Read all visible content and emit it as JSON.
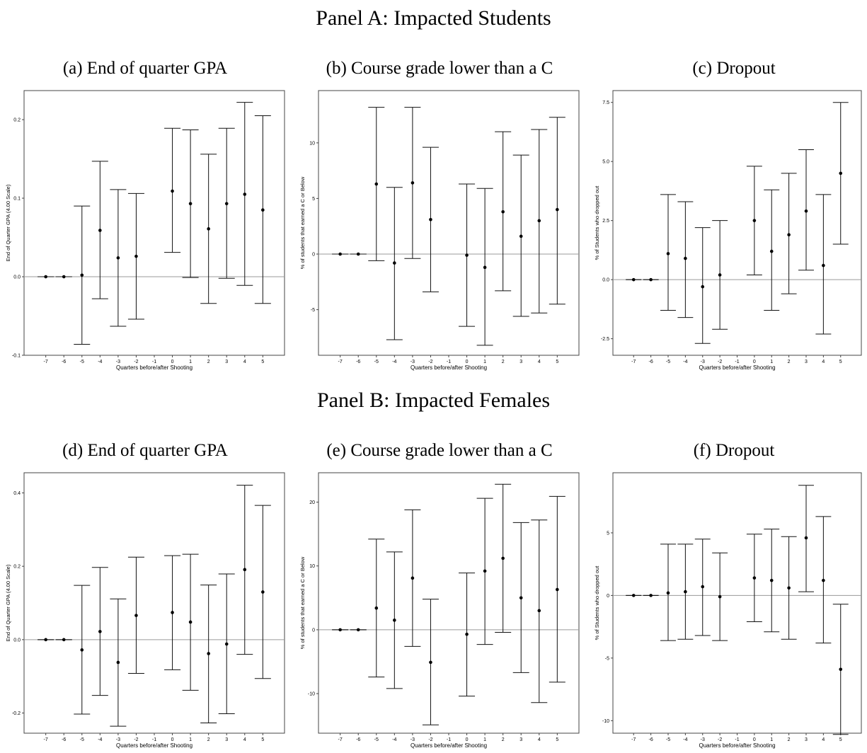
{
  "panels": [
    {
      "title": "Panel A: Impacted Students"
    },
    {
      "title": "Panel B: Impacted Females"
    }
  ],
  "chart_data": [
    {
      "id": "a",
      "type": "scatter",
      "title": "(a) End of quarter GPA",
      "xlabel": "Quarters before/after Shooting",
      "ylabel": "End of Quarter GPA (4.00 Scale)",
      "xlim": [
        -8.2,
        6.2
      ],
      "ylim": [
        -0.1,
        0.237
      ],
      "x_ticks": [
        -7,
        -6,
        -5,
        -4,
        -3,
        -2,
        -1,
        0,
        1,
        2,
        3,
        4,
        5
      ],
      "x_tick_labels": [
        "-7",
        "-6",
        "-5",
        "-4",
        "-3",
        "-2",
        "-1",
        "0",
        "1",
        "2",
        "3",
        "4",
        "5"
      ],
      "y_ticks": [
        -0.1,
        0.0,
        0.1,
        0.2
      ],
      "y_tick_labels": [
        "-0.1",
        "0.0",
        "0.1",
        "0.2"
      ],
      "reference_line": 0,
      "grid": false,
      "points": [
        {
          "x": -7,
          "y": 0.0,
          "lo": 0.0,
          "hi": 0.0
        },
        {
          "x": -6,
          "y": 0.0,
          "lo": 0.0,
          "hi": 0.0
        },
        {
          "x": -5,
          "y": 0.002,
          "lo": -0.086,
          "hi": 0.09
        },
        {
          "x": -4,
          "y": 0.059,
          "lo": -0.028,
          "hi": 0.147
        },
        {
          "x": -3,
          "y": 0.024,
          "lo": -0.063,
          "hi": 0.111
        },
        {
          "x": -2,
          "y": 0.026,
          "lo": -0.054,
          "hi": 0.106
        },
        {
          "x": 0,
          "y": 0.109,
          "lo": 0.031,
          "hi": 0.189
        },
        {
          "x": 1,
          "y": 0.093,
          "lo": -0.001,
          "hi": 0.187
        },
        {
          "x": 2,
          "y": 0.061,
          "lo": -0.034,
          "hi": 0.156
        },
        {
          "x": 3,
          "y": 0.093,
          "lo": -0.002,
          "hi": 0.189
        },
        {
          "x": 4,
          "y": 0.105,
          "lo": -0.011,
          "hi": 0.222
        },
        {
          "x": 5,
          "y": 0.085,
          "lo": -0.034,
          "hi": 0.205
        }
      ]
    },
    {
      "id": "b",
      "type": "scatter",
      "title": "(b) Course grade lower than a C",
      "xlabel": "Quarters before/after Shooting",
      "ylabel": "% of students that earned a C or Below",
      "xlim": [
        -8.2,
        6.2
      ],
      "ylim": [
        -9.1,
        14.7
      ],
      "x_ticks": [
        -7,
        -6,
        -5,
        -4,
        -3,
        -2,
        -1,
        0,
        1,
        2,
        3,
        4,
        5
      ],
      "x_tick_labels": [
        "-7",
        "-6",
        "-5",
        "-4",
        "-3",
        "-2",
        "-1",
        "0",
        "1",
        "2",
        "3",
        "4",
        "5"
      ],
      "y_ticks": [
        -5,
        0,
        5,
        10
      ],
      "y_tick_labels": [
        "-5",
        "0",
        "5",
        "10"
      ],
      "reference_line": 0,
      "grid": false,
      "points": [
        {
          "x": -7,
          "y": 0.0,
          "lo": 0.0,
          "hi": 0.0
        },
        {
          "x": -6,
          "y": 0.0,
          "lo": 0.0,
          "hi": 0.0
        },
        {
          "x": -5,
          "y": 6.3,
          "lo": -0.6,
          "hi": 13.2
        },
        {
          "x": -4,
          "y": -0.8,
          "lo": -7.7,
          "hi": 6.0
        },
        {
          "x": -3,
          "y": 6.4,
          "lo": -0.4,
          "hi": 13.2
        },
        {
          "x": -2,
          "y": 3.1,
          "lo": -3.4,
          "hi": 9.6
        },
        {
          "x": 0,
          "y": -0.1,
          "lo": -6.5,
          "hi": 6.3
        },
        {
          "x": 1,
          "y": -1.2,
          "lo": -8.2,
          "hi": 5.9
        },
        {
          "x": 2,
          "y": 3.8,
          "lo": -3.3,
          "hi": 11.0
        },
        {
          "x": 3,
          "y": 1.6,
          "lo": -5.6,
          "hi": 8.9
        },
        {
          "x": 4,
          "y": 3.0,
          "lo": -5.3,
          "hi": 11.2
        },
        {
          "x": 5,
          "y": 4.0,
          "lo": -4.5,
          "hi": 12.3
        }
      ]
    },
    {
      "id": "c",
      "type": "scatter",
      "title": "(c) Dropout",
      "xlabel": "Quarters before/after Shooting",
      "ylabel": "% of Students who dropped out",
      "xlim": [
        -8.2,
        6.2
      ],
      "ylim": [
        -3.2,
        8.0
      ],
      "x_ticks": [
        -7,
        -6,
        -5,
        -4,
        -3,
        -2,
        -1,
        0,
        1,
        2,
        3,
        4,
        5
      ],
      "x_tick_labels": [
        "-7",
        "-6",
        "-5",
        "-4",
        "-3",
        "-2",
        "-1",
        "0",
        "1",
        "2",
        "3",
        "4",
        "5"
      ],
      "y_ticks": [
        -2.5,
        0,
        2.5,
        5,
        7.5
      ],
      "y_tick_labels": [
        "-2.5",
        "0.0",
        "2.5",
        "5.0",
        "7.5"
      ],
      "reference_line": 0,
      "grid": false,
      "points": [
        {
          "x": -7,
          "y": 0.0,
          "lo": 0.0,
          "hi": 0.0
        },
        {
          "x": -6,
          "y": 0.0,
          "lo": 0.0,
          "hi": 0.0
        },
        {
          "x": -5,
          "y": 1.1,
          "lo": -1.3,
          "hi": 3.6
        },
        {
          "x": -4,
          "y": 0.9,
          "lo": -1.6,
          "hi": 3.3
        },
        {
          "x": -3,
          "y": -0.3,
          "lo": -2.7,
          "hi": 2.2
        },
        {
          "x": -2,
          "y": 0.2,
          "lo": -2.1,
          "hi": 2.5
        },
        {
          "x": 0,
          "y": 2.5,
          "lo": 0.2,
          "hi": 4.8
        },
        {
          "x": 1,
          "y": 1.2,
          "lo": -1.3,
          "hi": 3.8
        },
        {
          "x": 2,
          "y": 1.9,
          "lo": -0.6,
          "hi": 4.5
        },
        {
          "x": 3,
          "y": 2.9,
          "lo": 0.4,
          "hi": 5.5
        },
        {
          "x": 4,
          "y": 0.6,
          "lo": -2.3,
          "hi": 3.6
        },
        {
          "x": 5,
          "y": 4.5,
          "lo": 1.5,
          "hi": 7.5
        }
      ]
    },
    {
      "id": "d",
      "type": "scatter",
      "title": "(d) End of quarter GPA",
      "xlabel": "Quarters before/after Shooting",
      "ylabel": "End of Quarter GPA (4.00 Scale)",
      "xlim": [
        -8.2,
        6.2
      ],
      "ylim": [
        -0.255,
        0.455
      ],
      "x_ticks": [
        -7,
        -6,
        -5,
        -4,
        -3,
        -2,
        -1,
        0,
        1,
        2,
        3,
        4,
        5
      ],
      "x_tick_labels": [
        "-7",
        "-6",
        "-5",
        "-4",
        "-3",
        "-2",
        "-1",
        "0",
        "1",
        "2",
        "3",
        "4",
        "5"
      ],
      "y_ticks": [
        -0.2,
        0.0,
        0.2,
        0.4
      ],
      "y_tick_labels": [
        "-0.2",
        "0.0",
        "0.2",
        "0.4"
      ],
      "reference_line": 0,
      "grid": false,
      "points": [
        {
          "x": -7,
          "y": 0.0,
          "lo": 0.0,
          "hi": 0.0
        },
        {
          "x": -6,
          "y": 0.0,
          "lo": 0.0,
          "hi": 0.0
        },
        {
          "x": -5,
          "y": -0.028,
          "lo": -0.203,
          "hi": 0.148
        },
        {
          "x": -4,
          "y": 0.022,
          "lo": -0.152,
          "hi": 0.197
        },
        {
          "x": -3,
          "y": -0.062,
          "lo": -0.236,
          "hi": 0.111
        },
        {
          "x": -2,
          "y": 0.066,
          "lo": -0.092,
          "hi": 0.225
        },
        {
          "x": 0,
          "y": 0.074,
          "lo": -0.082,
          "hi": 0.229
        },
        {
          "x": 1,
          "y": 0.048,
          "lo": -0.138,
          "hi": 0.233
        },
        {
          "x": 2,
          "y": -0.038,
          "lo": -0.227,
          "hi": 0.149
        },
        {
          "x": 3,
          "y": -0.012,
          "lo": -0.202,
          "hi": 0.179
        },
        {
          "x": 4,
          "y": 0.191,
          "lo": -0.04,
          "hi": 0.421
        },
        {
          "x": 5,
          "y": 0.13,
          "lo": -0.106,
          "hi": 0.366
        }
      ]
    },
    {
      "id": "e",
      "type": "scatter",
      "title": "(e) Course grade lower than a C",
      "xlabel": "Quarters before/after Shooting",
      "ylabel": "% of students that earned a C or Below",
      "xlim": [
        -8.2,
        6.2
      ],
      "ylim": [
        -16.2,
        24.6
      ],
      "x_ticks": [
        -7,
        -6,
        -5,
        -4,
        -3,
        -2,
        -1,
        0,
        1,
        2,
        3,
        4,
        5
      ],
      "x_tick_labels": [
        "-7",
        "-6",
        "-5",
        "-4",
        "-3",
        "-2",
        "-1",
        "0",
        "1",
        "2",
        "3",
        "4",
        "5"
      ],
      "y_ticks": [
        -10,
        0,
        10,
        20
      ],
      "y_tick_labels": [
        "-10",
        "0",
        "10",
        "20"
      ],
      "reference_line": 0,
      "grid": false,
      "points": [
        {
          "x": -7,
          "y": 0.0,
          "lo": 0.0,
          "hi": 0.0
        },
        {
          "x": -6,
          "y": 0.0,
          "lo": 0.0,
          "hi": 0.0
        },
        {
          "x": -5,
          "y": 3.4,
          "lo": -7.4,
          "hi": 14.2
        },
        {
          "x": -4,
          "y": 1.5,
          "lo": -9.2,
          "hi": 12.2
        },
        {
          "x": -3,
          "y": 8.1,
          "lo": -2.6,
          "hi": 18.8
        },
        {
          "x": -2,
          "y": -5.1,
          "lo": -14.9,
          "hi": 4.8
        },
        {
          "x": 0,
          "y": -0.7,
          "lo": -10.4,
          "hi": 8.9
        },
        {
          "x": 1,
          "y": 9.2,
          "lo": -2.3,
          "hi": 20.6
        },
        {
          "x": 2,
          "y": 11.2,
          "lo": -0.4,
          "hi": 22.8
        },
        {
          "x": 3,
          "y": 5.0,
          "lo": -6.7,
          "hi": 16.8
        },
        {
          "x": 4,
          "y": 3.0,
          "lo": -11.4,
          "hi": 17.2
        },
        {
          "x": 5,
          "y": 6.3,
          "lo": -8.2,
          "hi": 20.9
        }
      ]
    },
    {
      "id": "f",
      "type": "scatter",
      "title": "(f) Dropout",
      "xlabel": "Quarters before/after Shooting",
      "ylabel": "% of Students who dropped out",
      "xlim": [
        -8.2,
        6.2
      ],
      "ylim": [
        -11.0,
        9.8
      ],
      "x_ticks": [
        -7,
        -6,
        -5,
        -4,
        -3,
        -2,
        -1,
        0,
        1,
        2,
        3,
        4,
        5
      ],
      "x_tick_labels": [
        "-7",
        "-6",
        "-5",
        "-4",
        "-3",
        "-2",
        "-1",
        "0",
        "1",
        "2",
        "3",
        "4",
        "5"
      ],
      "y_ticks": [
        -10,
        -5,
        0,
        5
      ],
      "y_tick_labels": [
        "-10",
        "-5",
        "0",
        "5"
      ],
      "reference_line": 0,
      "grid": false,
      "points": [
        {
          "x": -7,
          "y": 0.0,
          "lo": 0.0,
          "hi": 0.0
        },
        {
          "x": -6,
          "y": 0.0,
          "lo": 0.0,
          "hi": 0.0
        },
        {
          "x": -5,
          "y": 0.2,
          "lo": -3.6,
          "hi": 4.1
        },
        {
          "x": -4,
          "y": 0.3,
          "lo": -3.5,
          "hi": 4.1
        },
        {
          "x": -3,
          "y": 0.7,
          "lo": -3.2,
          "hi": 4.5
        },
        {
          "x": -2,
          "y": -0.1,
          "lo": -3.6,
          "hi": 3.4
        },
        {
          "x": 0,
          "y": 1.4,
          "lo": -2.1,
          "hi": 4.9
        },
        {
          "x": 1,
          "y": 1.2,
          "lo": -2.9,
          "hi": 5.3
        },
        {
          "x": 2,
          "y": 0.6,
          "lo": -3.5,
          "hi": 4.7
        },
        {
          "x": 3,
          "y": 4.6,
          "lo": 0.3,
          "hi": 8.8
        },
        {
          "x": 4,
          "y": 1.2,
          "lo": -3.8,
          "hi": 6.3
        },
        {
          "x": 5,
          "y": -5.9,
          "lo": -11.1,
          "hi": -0.7
        }
      ]
    }
  ]
}
